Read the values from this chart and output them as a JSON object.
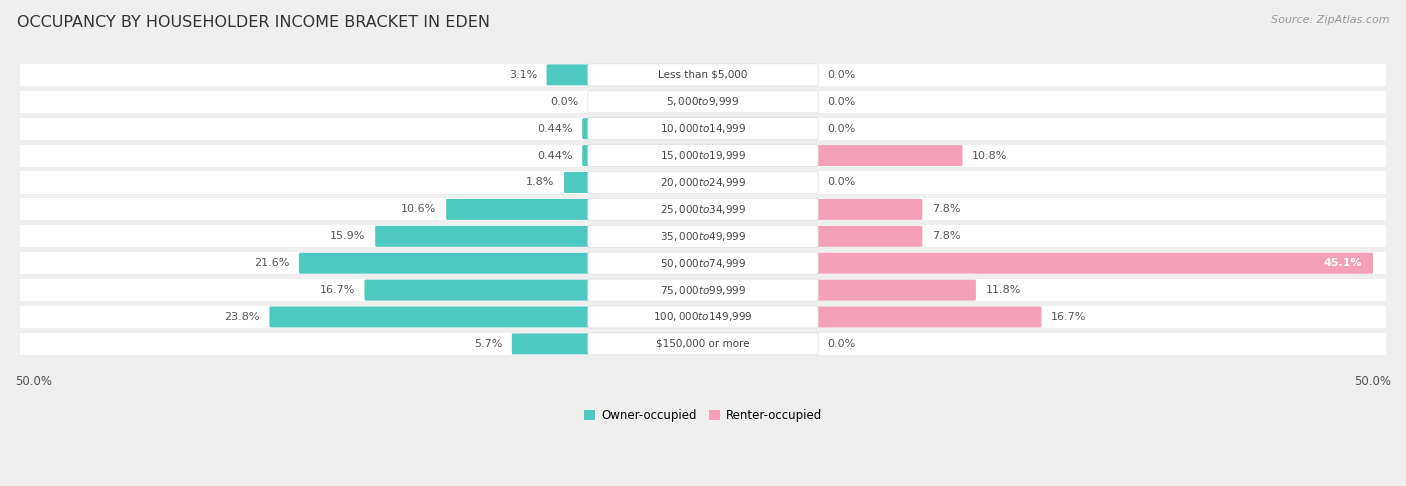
{
  "title": "OCCUPANCY BY HOUSEHOLDER INCOME BRACKET IN EDEN",
  "source": "Source: ZipAtlas.com",
  "categories": [
    "Less than $5,000",
    "$5,000 to $9,999",
    "$10,000 to $14,999",
    "$15,000 to $19,999",
    "$20,000 to $24,999",
    "$25,000 to $34,999",
    "$35,000 to $49,999",
    "$50,000 to $74,999",
    "$75,000 to $99,999",
    "$100,000 to $149,999",
    "$150,000 or more"
  ],
  "owner_values": [
    3.1,
    0.0,
    0.44,
    0.44,
    1.8,
    10.6,
    15.9,
    21.6,
    16.7,
    23.8,
    5.7
  ],
  "renter_values": [
    0.0,
    0.0,
    0.0,
    10.8,
    0.0,
    7.8,
    7.8,
    45.1,
    11.8,
    16.7,
    0.0
  ],
  "owner_color": "#4ec9c0",
  "renter_color": "#f4a0b8",
  "owner_label": "Owner-occupied",
  "renter_label": "Renter-occupied",
  "axis_limit": 50.0,
  "bg_color": "#efefef",
  "row_bg_color": "#ffffff",
  "stripe_color": "#e8e8e8",
  "title_fontsize": 11.5,
  "source_fontsize": 8,
  "tick_fontsize": 8.5,
  "bar_label_fontsize": 8,
  "category_fontsize": 7.5,
  "label_color": "#555555",
  "category_color": "#444444",
  "center_pill_color": "#ffffff",
  "owner_values_labels": [
    "3.1%",
    "0.0%",
    "0.44%",
    "0.44%",
    "1.8%",
    "10.6%",
    "15.9%",
    "21.6%",
    "16.7%",
    "23.8%",
    "5.7%"
  ],
  "renter_values_labels": [
    "0.0%",
    "0.0%",
    "0.0%",
    "10.8%",
    "0.0%",
    "7.8%",
    "7.8%",
    "45.1%",
    "11.8%",
    "16.7%",
    "0.0%"
  ]
}
